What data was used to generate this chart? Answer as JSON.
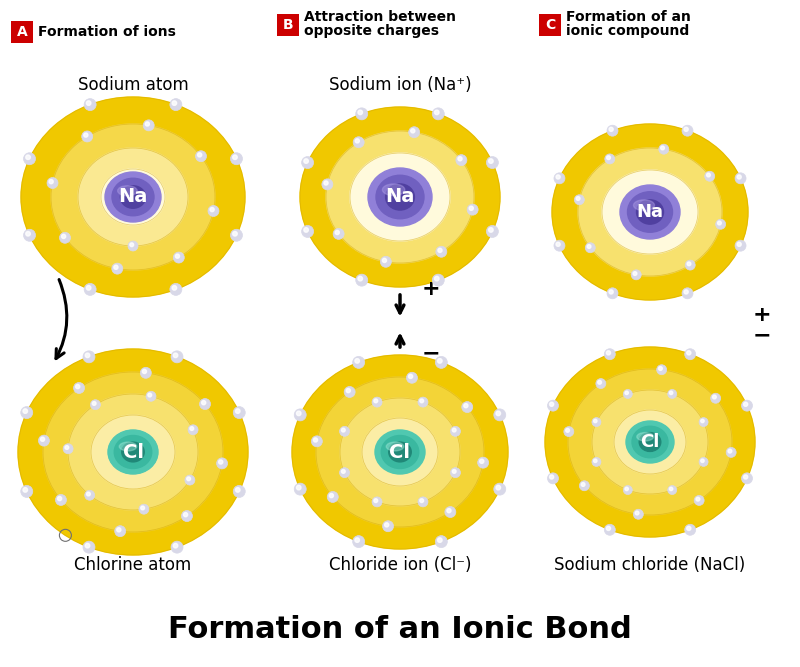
{
  "title": "Formation of an Ionic Bond",
  "title_fontsize": 22,
  "bg_color": "#ffffff",
  "section_labels": [
    "A",
    "B",
    "C"
  ],
  "section_label_bg": "#cc0000",
  "section_titles": [
    "Formation of ions",
    "Attraction between\nopposite charges",
    "Formation of an\nionic compound"
  ],
  "atom_labels": {
    "Na_top_A": "Sodium atom",
    "Cl_bottom_A": "Chlorine atom",
    "Na_top_B": "Sodium ion (Na⁺)",
    "Cl_bottom_B": "Chloride ion (Cl⁻)",
    "NaCl_C": "Sodium chloride (NaCl)"
  },
  "na_color": "#7060c0",
  "cl_color": "#3ab8a0",
  "electron_color": "#d8d8e8",
  "electron_edge": "#a0a0b8",
  "shell_yellow": "#f0c800",
  "shell_pale": "#fff8d0",
  "shell_white": "#ffffff"
}
